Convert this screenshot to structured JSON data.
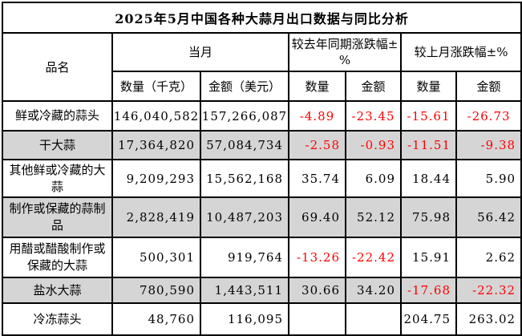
{
  "chart_data": {
    "type": "table",
    "title": "2025年5月中国各种大蒜月出口数据与同比分析",
    "headers": {
      "product": "品名",
      "current_month": "当月",
      "yoy_change": "较去年同期涨跌幅±%",
      "mom_change": "较上月涨跌幅±%",
      "qty_kg": "数量（千克）",
      "amount_usd": "金额（美元）",
      "qty": "数量",
      "amount": "金额"
    },
    "rows": [
      {
        "name": "鲜或冷藏的蒜头",
        "values": [
          "146,040,582",
          "157,266,087",
          "-4.89",
          "-23.45",
          "-15.61",
          "-26.73"
        ]
      },
      {
        "name": "干大蒜",
        "values": [
          "17,364,820",
          "57,084,734",
          "-2.58",
          "-0.93",
          "-11.51",
          "-9.38"
        ]
      },
      {
        "name": "其他鲜或冷藏的大蒜",
        "values": [
          "9,209,293",
          "15,562,168",
          "35.74",
          "6.09",
          "18.44",
          "5.90"
        ]
      },
      {
        "name": "制作或保藏的蒜制品",
        "values": [
          "2,828,419",
          "10,487,203",
          "69.40",
          "52.12",
          "75.98",
          "56.42"
        ]
      },
      {
        "name": "用醋或醋酸制作或保藏的大蒜",
        "values": [
          "500,301",
          "919,764",
          "-13.26",
          "-22.42",
          "15.91",
          "2.62"
        ]
      },
      {
        "name": "盐水大蒜",
        "values": [
          "780,590",
          "1,443,511",
          "30.66",
          "34.20",
          "-17.68",
          "-22.32"
        ]
      },
      {
        "name": "冷冻蒜头",
        "values": [
          "48,760",
          "116,095",
          "",
          "",
          "204.75",
          "263.02"
        ]
      }
    ],
    "layout": {
      "shaded_row_indices": [
        2,
        4,
        6
      ],
      "first_data_row_align": "center",
      "other_data_rows_align": "right"
    }
  },
  "colors": {
    "negative_value": "#ff0000",
    "shaded_row": "#d5d5d5",
    "border": "#000000",
    "background": "#ffffff"
  }
}
